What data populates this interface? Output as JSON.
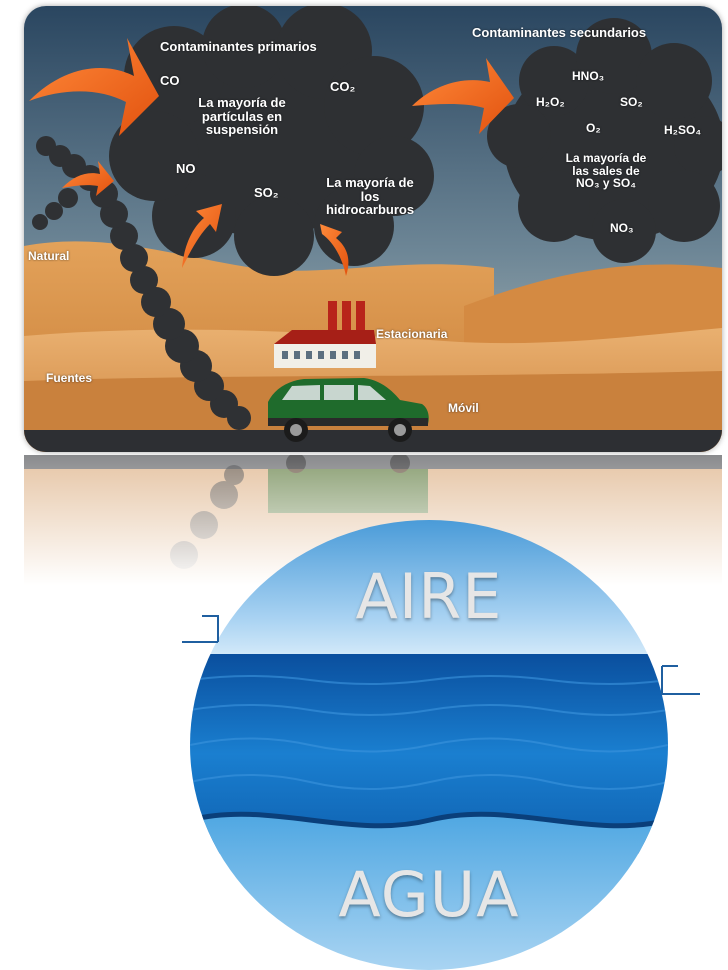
{
  "diagram": {
    "primary_title": "Contaminantes primarios",
    "secondary_title": "Contaminantes secundarios",
    "primary_items": {
      "co": "CO",
      "co2": "CO₂",
      "particles": [
        "La mayoría de",
        "partículas en",
        "suspensión"
      ],
      "no": "NO",
      "so2": "SO₂",
      "hydrocarbons": [
        "La mayoría de",
        "los",
        "hidrocarburos"
      ]
    },
    "secondary_items": {
      "hno3": "HNO₃",
      "h2o2": "H₂O₂",
      "so2": "SO₂",
      "o2": "O₂",
      "h2so4": "H₂SO₄",
      "salts": [
        "La mayoría de",
        "las sales de",
        "NO₃ y SO₄"
      ],
      "no3": "NO₃"
    },
    "sources": {
      "natural": "Natural",
      "stationary": "Estacionaria",
      "fuentes": "Fuentes",
      "mobile": "Móvil"
    }
  },
  "circle": {
    "top_word": "AIRE",
    "bottom_word": "AGUA"
  },
  "colors": {
    "sky_top": "#2a465e",
    "sky_bottom": "#9fb2b8",
    "smoke": "#2e3033",
    "arrow": "#f26a1b",
    "sand": "#d9924a",
    "car": "#1f6b2c",
    "water": "#0f63b3"
  }
}
